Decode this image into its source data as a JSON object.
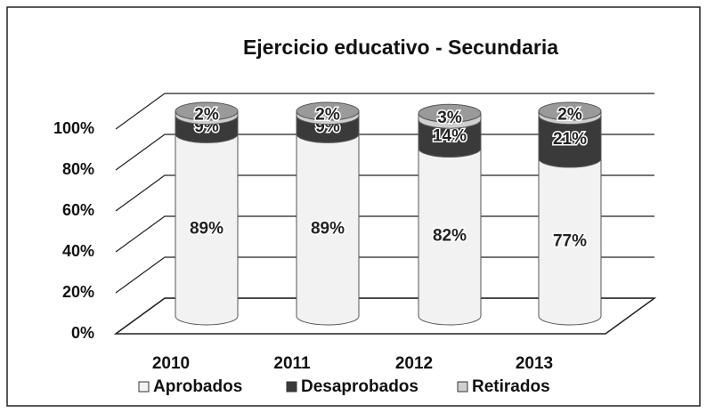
{
  "chart_data": {
    "type": "bar3d_stacked_cylinder",
    "title": "Ejercicio educativo - Secundaria",
    "categories": [
      "2010",
      "2011",
      "2012",
      "2013"
    ],
    "series": [
      {
        "name": "Aprobados",
        "color": "#f2f2f2",
        "values": [
          89,
          89,
          82,
          77
        ],
        "value_labels": [
          "89%",
          "89%",
          "82%",
          "77%"
        ]
      },
      {
        "name": "Desaprobados",
        "color": "#3a3a3a",
        "values": [
          9,
          9,
          14,
          21
        ],
        "value_labels": [
          "9%",
          "9%",
          "14%",
          "21%"
        ]
      },
      {
        "name": "Retirados",
        "color": "#cfcfcf",
        "values": [
          2,
          2,
          3,
          2
        ],
        "value_labels": [
          "2%",
          "2%",
          "3%",
          "2%"
        ]
      }
    ],
    "ylim": [
      0,
      100
    ],
    "yticks": [
      {
        "value": 0,
        "label": "0%"
      },
      {
        "value": 20,
        "label": "20%"
      },
      {
        "value": 40,
        "label": "40%"
      },
      {
        "value": 60,
        "label": "60%"
      },
      {
        "value": 80,
        "label": "80%"
      },
      {
        "value": 100,
        "label": "100%"
      }
    ],
    "grid": true,
    "legend": "bottom"
  }
}
